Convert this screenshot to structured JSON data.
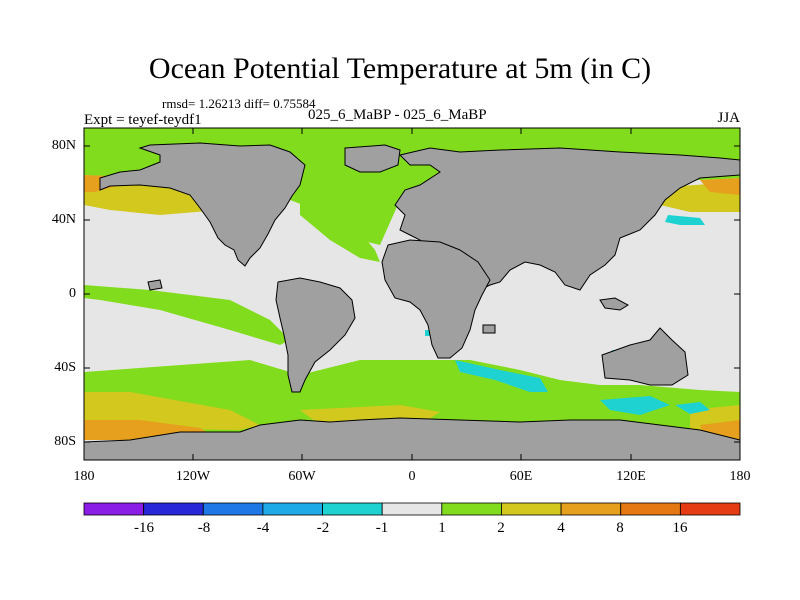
{
  "title": "Ocean Potential Temperature at 5m (in C)",
  "stats": "rmsd= 1.26213 diff= 0.75584",
  "experiment": "Expt = teyef-teydf1",
  "case_label": "025_6_MaBP - 025_6_MaBP",
  "season": "JJA",
  "map": {
    "lat_labels": [
      "80N",
      "40N",
      "0",
      "40S",
      "80S"
    ],
    "lon_labels": [
      "180",
      "120W",
      "60W",
      "0",
      "60E",
      "120E",
      "180"
    ],
    "land_color": "#a0a0a0",
    "ocean_background_color": "#e6e6e6"
  },
  "colorbar": {
    "colors": [
      "#8a1ee6",
      "#2828d8",
      "#1e78e6",
      "#1eaae6",
      "#1ed2d2",
      "#e6e6e6",
      "#82dc1e",
      "#d2c81e",
      "#e6a01e",
      "#e67814",
      "#e63c14"
    ],
    "labels": [
      "-16",
      "-8",
      "-4",
      "-2",
      "-1",
      "1",
      "2",
      "4",
      "8",
      "16"
    ]
  },
  "chart_data": {
    "type": "heatmap",
    "title": "Ocean Potential Temperature at 5m (in C)",
    "variable": "Ocean Potential Temperature at 5m",
    "units": "C",
    "rmsd": 1.26213,
    "diff": 0.75584,
    "x_range": [
      -180,
      180
    ],
    "y_range": [
      -90,
      90
    ],
    "contour_levels": [
      -16,
      -8,
      -4,
      -2,
      -1,
      1,
      2,
      4,
      8,
      16
    ]
  }
}
